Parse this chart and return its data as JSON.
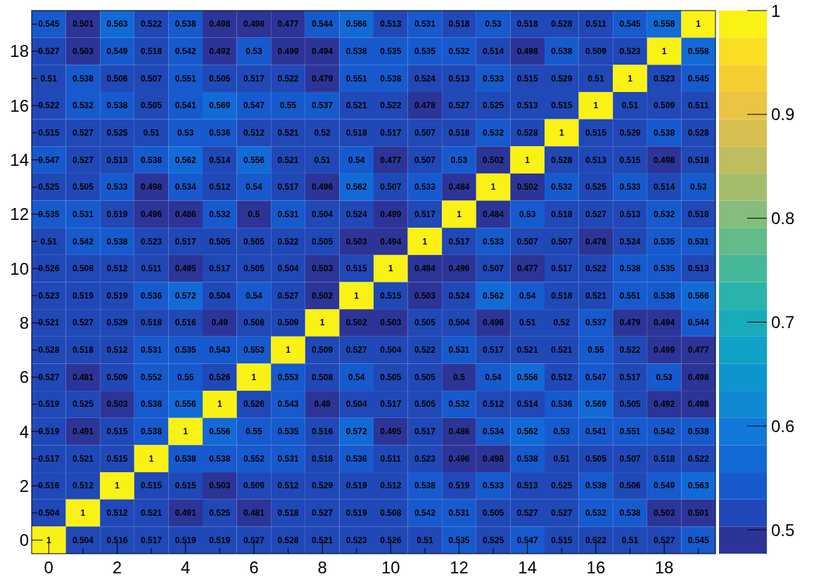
{
  "chart_data": {
    "type": "heatmap",
    "categories": [
      "0",
      null,
      "2",
      null,
      "4",
      null,
      "6",
      null,
      "8",
      null,
      "10",
      null,
      "12",
      null,
      "14",
      null,
      "16",
      null,
      "18",
      null
    ],
    "y_categories": [
      null,
      "18",
      null,
      "16",
      null,
      "14",
      null,
      "12",
      null,
      "10",
      null,
      "8",
      null,
      "6",
      null,
      "4",
      null,
      "2",
      null,
      "0"
    ],
    "cells": [
      [
        0.545,
        0.501,
        0.563,
        0.522,
        0.538,
        0.498,
        0.498,
        0.477,
        0.544,
        0.566,
        0.513,
        0.531,
        0.518,
        0.53,
        0.518,
        0.528,
        0.511,
        0.545,
        0.558,
        1
      ],
      [
        0.527,
        0.503,
        0.549,
        0.518,
        0.542,
        0.492,
        0.53,
        0.499,
        0.494,
        0.538,
        0.535,
        0.535,
        0.532,
        0.514,
        0.498,
        0.538,
        0.509,
        0.523,
        1,
        0.558
      ],
      [
        0.51,
        0.538,
        0.506,
        0.507,
        0.551,
        0.505,
        0.517,
        0.522,
        0.479,
        0.551,
        0.538,
        0.524,
        0.513,
        0.533,
        0.515,
        0.529,
        0.51,
        1,
        0.523,
        0.545
      ],
      [
        0.522,
        0.532,
        0.538,
        0.505,
        0.541,
        0.569,
        0.547,
        0.55,
        0.537,
        0.521,
        0.522,
        0.478,
        0.527,
        0.525,
        0.513,
        0.515,
        1,
        0.51,
        0.509,
        0.511
      ],
      [
        0.515,
        0.527,
        0.525,
        0.51,
        0.53,
        0.536,
        0.512,
        0.521,
        0.52,
        0.518,
        0.517,
        0.507,
        0.518,
        0.532,
        0.528,
        1,
        0.515,
        0.529,
        0.538,
        0.528
      ],
      [
        0.547,
        0.527,
        0.513,
        0.538,
        0.562,
        0.514,
        0.556,
        0.521,
        0.51,
        0.54,
        0.477,
        0.507,
        0.53,
        0.502,
        1,
        0.528,
        0.513,
        0.515,
        0.498,
        0.518
      ],
      [
        0.525,
        0.505,
        0.533,
        0.498,
        0.534,
        0.512,
        0.54,
        0.517,
        0.496,
        0.562,
        0.507,
        0.533,
        0.484,
        1,
        0.502,
        0.532,
        0.525,
        0.533,
        0.514,
        0.53
      ],
      [
        0.535,
        0.531,
        0.519,
        0.496,
        0.486,
        0.532,
        0.5,
        0.531,
        0.504,
        0.524,
        0.499,
        0.517,
        1,
        0.484,
        0.53,
        0.518,
        0.527,
        0.513,
        0.532,
        0.518
      ],
      [
        0.51,
        0.542,
        0.538,
        0.523,
        0.517,
        0.505,
        0.505,
        0.522,
        0.505,
        0.503,
        0.494,
        1,
        0.517,
        0.533,
        0.507,
        0.507,
        0.478,
        0.524,
        0.535,
        0.531
      ],
      [
        0.526,
        0.508,
        0.512,
        0.511,
        0.495,
        0.517,
        0.505,
        0.504,
        0.503,
        0.515,
        1,
        0.494,
        0.499,
        0.507,
        0.477,
        0.517,
        0.522,
        0.538,
        0.535,
        0.513
      ],
      [
        0.523,
        0.519,
        0.519,
        0.536,
        0.572,
        0.504,
        0.54,
        0.527,
        0.502,
        1,
        0.515,
        0.503,
        0.524,
        0.562,
        0.54,
        0.518,
        0.521,
        0.551,
        0.538,
        0.566
      ],
      [
        0.521,
        0.527,
        0.529,
        0.518,
        0.516,
        0.49,
        0.508,
        0.509,
        1,
        0.502,
        0.503,
        0.505,
        0.504,
        0.496,
        0.51,
        0.52,
        0.537,
        0.479,
        0.494,
        0.544
      ],
      [
        0.528,
        0.518,
        0.512,
        0.531,
        0.535,
        0.543,
        0.553,
        1,
        0.509,
        0.527,
        0.504,
        0.522,
        0.531,
        0.517,
        0.521,
        0.521,
        0.55,
        0.522,
        0.499,
        0.477
      ],
      [
        0.527,
        0.481,
        0.509,
        0.552,
        0.55,
        0.526,
        1,
        0.553,
        0.508,
        0.54,
        0.505,
        0.505,
        0.5,
        0.54,
        0.556,
        0.512,
        0.547,
        0.517,
        0.53,
        0.498
      ],
      [
        0.519,
        0.525,
        0.503,
        0.538,
        0.556,
        1,
        0.526,
        0.543,
        0.49,
        0.504,
        0.517,
        0.505,
        0.532,
        0.512,
        0.514,
        0.536,
        0.569,
        0.505,
        0.492,
        0.498
      ],
      [
        0.519,
        0.491,
        0.515,
        0.538,
        1,
        0.556,
        0.55,
        0.535,
        0.516,
        0.572,
        0.495,
        0.517,
        0.486,
        0.534,
        0.562,
        0.53,
        0.541,
        0.551,
        0.542,
        0.538
      ],
      [
        0.517,
        0.521,
        0.515,
        1,
        0.538,
        0.538,
        0.552,
        0.531,
        0.518,
        0.536,
        0.511,
        0.523,
        0.496,
        0.498,
        0.538,
        0.51,
        0.505,
        0.507,
        0.518,
        0.522
      ],
      [
        0.516,
        0.512,
        1,
        0.515,
        0.515,
        0.503,
        0.509,
        0.512,
        0.529,
        0.519,
        0.512,
        0.538,
        0.519,
        0.533,
        0.513,
        0.525,
        0.538,
        0.506,
        0.549,
        0.563
      ],
      [
        0.504,
        1,
        0.512,
        0.521,
        0.491,
        0.525,
        0.481,
        0.518,
        0.527,
        0.519,
        0.508,
        0.542,
        0.531,
        0.505,
        0.527,
        0.527,
        0.532,
        0.538,
        0.503,
        0.501
      ],
      [
        1,
        0.504,
        0.516,
        0.517,
        0.519,
        0.519,
        0.527,
        0.528,
        0.521,
        0.523,
        0.526,
        0.51,
        0.535,
        0.525,
        0.547,
        0.515,
        0.522,
        0.51,
        0.527,
        0.545
      ]
    ],
    "data_labels": true,
    "clim": [
      0.477,
      1
    ],
    "cticks": [
      0.5,
      0.6,
      0.7,
      0.8,
      0.9,
      1
    ]
  }
}
